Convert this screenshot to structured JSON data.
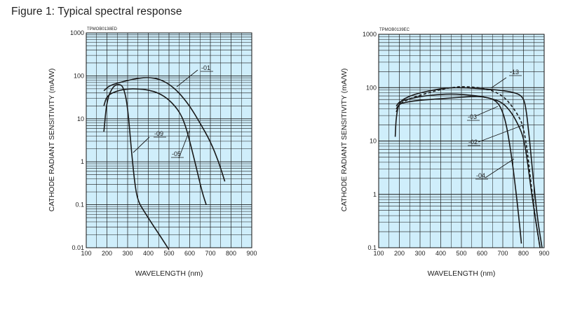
{
  "figure_title": "Figure 1: Typical spectral response",
  "chart_data": [
    {
      "type": "line",
      "code": "TPMOB0138ED",
      "xlabel": "WAVELENGTH (nm)",
      "ylabel": "CATHODE RADIANT SENSITIVITY (mA/W)",
      "xlim": [
        100,
        900
      ],
      "ylim": [
        0.01,
        1000
      ],
      "yscale": "log",
      "grid": true,
      "x_ticks": [
        "100",
        "200",
        "300",
        "400",
        "500",
        "600",
        "700",
        "800",
        "900"
      ],
      "y_ticks": [
        {
          "v": 1000,
          "label": "1000"
        },
        {
          "v": 100,
          "label": "100"
        },
        {
          "v": 10,
          "label": "10"
        },
        {
          "v": 1,
          "label": "1"
        },
        {
          "v": 0.1,
          "label": "0.1"
        },
        {
          "v": 0.01,
          "label": "0.01"
        }
      ],
      "series": [
        {
          "name": "-01",
          "points": [
            [
              185,
              45
            ],
            [
              210,
              58
            ],
            [
              250,
              68
            ],
            [
              300,
              78
            ],
            [
              350,
              88
            ],
            [
              400,
              92
            ],
            [
              450,
              85
            ],
            [
              500,
              65
            ],
            [
              550,
              40
            ],
            [
              600,
              20
            ],
            [
              650,
              8
            ],
            [
              700,
              3
            ],
            [
              740,
              1
            ],
            [
              770,
              0.35
            ]
          ],
          "label_at": [
            287,
            100
          ],
          "pointer": [
            [
              282,
              100
            ],
            [
              252,
              124
            ]
          ]
        },
        {
          "name": "-09",
          "points": [
            [
              185,
              5
            ],
            [
              200,
              28
            ],
            [
              230,
              58
            ],
            [
              260,
              65
            ],
            [
              280,
              55
            ],
            [
              300,
              20
            ],
            [
              320,
              1.5
            ],
            [
              335,
              0.3
            ],
            [
              350,
              0.12
            ],
            [
              380,
              0.07
            ],
            [
              420,
              0.035
            ],
            [
              460,
              0.018
            ],
            [
              500,
              0.009
            ]
          ],
          "label_at": [
            220,
            194
          ],
          "pointer": [
            [
              213,
              196
            ],
            [
              190,
              218
            ]
          ]
        },
        {
          "name": "-05",
          "points": [
            [
              185,
              20
            ],
            [
              200,
              35
            ],
            [
              250,
              45
            ],
            [
              300,
              50
            ],
            [
              350,
              50
            ],
            [
              400,
              47
            ],
            [
              450,
              40
            ],
            [
              500,
              28
            ],
            [
              550,
              15
            ],
            [
              580,
              7
            ],
            [
              610,
              2
            ],
            [
              640,
              0.5
            ],
            [
              660,
              0.2
            ],
            [
              680,
              0.1
            ]
          ],
          "label_at": [
            245,
            223
          ],
          "pointer": [
            [
              255,
              226
            ],
            [
              270,
              187
            ]
          ]
        }
      ]
    },
    {
      "type": "line",
      "code": "TPMOB0139EC",
      "xlabel": "WAVELENGTH (nm)",
      "ylabel": "CATHODE RADIANT SENSITIVITY (mA/W)",
      "xlim": [
        100,
        900
      ],
      "ylim": [
        0.1,
        1000
      ],
      "yscale": "log",
      "grid": true,
      "x_ticks": [
        "100",
        "200",
        "300",
        "400",
        "500",
        "600",
        "700",
        "800",
        "900"
      ],
      "y_ticks": [
        {
          "v": 1000,
          "label": "1000"
        },
        {
          "v": 100,
          "label": "100"
        },
        {
          "v": 10,
          "label": "10"
        },
        {
          "v": 1,
          "label": "1"
        },
        {
          "v": 0.1,
          "label": "0.1"
        }
      ],
      "series": [
        {
          "name": "-13",
          "style": "solid",
          "points": [
            [
              180,
              12
            ],
            [
              185,
              30
            ],
            [
              200,
              55
            ],
            [
              250,
              70
            ],
            [
              300,
              80
            ],
            [
              350,
              88
            ],
            [
              400,
              95
            ],
            [
              450,
              100
            ],
            [
              500,
              100
            ],
            [
              550,
              98
            ],
            [
              600,
              95
            ],
            [
              650,
              92
            ],
            [
              700,
              88
            ],
            [
              750,
              82
            ],
            [
              790,
              72
            ],
            [
              810,
              50
            ],
            [
              830,
              10
            ],
            [
              850,
              1.5
            ],
            [
              870,
              0.3
            ],
            [
              890,
              0.1
            ]
          ],
          "label_at": [
            727,
            106
          ],
          "pointer": [
            [
              722,
              111
            ],
            [
              700,
              126
            ]
          ]
        },
        {
          "name": "-03",
          "style": "solid",
          "points": [
            [
              185,
              45
            ],
            [
              200,
              55
            ],
            [
              250,
              62
            ],
            [
              300,
              68
            ],
            [
              350,
              72
            ],
            [
              400,
              75
            ],
            [
              450,
              76
            ],
            [
              500,
              75
            ],
            [
              550,
              72
            ],
            [
              600,
              68
            ],
            [
              650,
              62
            ],
            [
              700,
              52
            ],
            [
              740,
              35
            ],
            [
              770,
              22
            ],
            [
              800,
              12
            ],
            [
              820,
              4
            ],
            [
              840,
              1
            ],
            [
              860,
              0.3
            ],
            [
              880,
              0.1
            ]
          ],
          "label_at": [
            667,
            170
          ],
          "pointer": [
            [
              678,
              166
            ],
            [
              710,
              152
            ]
          ]
        },
        {
          "name": "-02",
          "style": "dashed",
          "points": [
            [
              185,
              35
            ],
            [
              200,
              50
            ],
            [
              250,
              62
            ],
            [
              300,
              72
            ],
            [
              350,
              82
            ],
            [
              400,
              92
            ],
            [
              450,
              100
            ],
            [
              500,
              105
            ],
            [
              550,
              103
            ],
            [
              600,
              98
            ],
            [
              650,
              88
            ],
            [
              700,
              70
            ],
            [
              740,
              48
            ],
            [
              780,
              28
            ],
            [
              800,
              18
            ],
            [
              820,
              6
            ],
            [
              840,
              1.2
            ],
            [
              860,
              0.3
            ],
            [
              880,
              0.1
            ]
          ],
          "label_at": [
            668,
            206
          ],
          "pointer": [
            [
              682,
              203
            ],
            [
              748,
              178
            ]
          ]
        },
        {
          "name": "-04",
          "style": "solid",
          "points": [
            [
              185,
              40
            ],
            [
              200,
              50
            ],
            [
              250,
              55
            ],
            [
              300,
              58
            ],
            [
              350,
              60
            ],
            [
              400,
              62
            ],
            [
              450,
              64
            ],
            [
              500,
              66
            ],
            [
              550,
              68
            ],
            [
              600,
              68
            ],
            [
              650,
              62
            ],
            [
              680,
              50
            ],
            [
              700,
              35
            ],
            [
              720,
              18
            ],
            [
              740,
              6
            ],
            [
              760,
              1.5
            ],
            [
              780,
              0.3
            ],
            [
              790,
              0.12
            ]
          ],
          "label_at": [
            679,
            254
          ],
          "pointer": [
            [
              692,
              254
            ],
            [
              733,
              227
            ]
          ]
        }
      ]
    }
  ]
}
